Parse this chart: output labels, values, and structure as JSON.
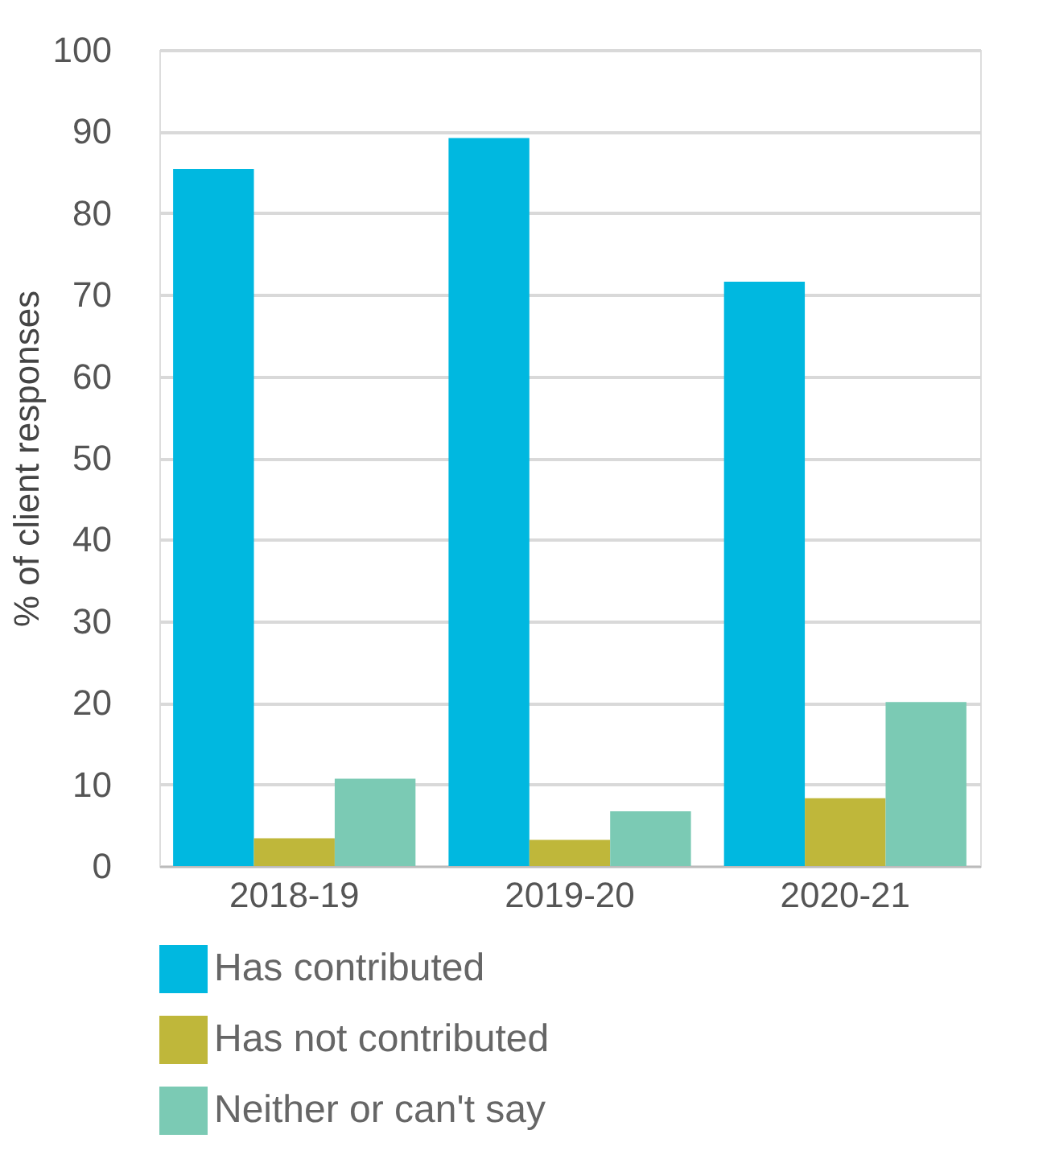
{
  "chart_data": {
    "type": "bar",
    "ylabel": "% of client responses",
    "categories": [
      "2018-19",
      "2019-20",
      "2020-21"
    ],
    "series": [
      {
        "name": "Has contributed",
        "color": "#00b8e0",
        "values": [
          85.4,
          89.2,
          71.6
        ]
      },
      {
        "name": "Has not contributed",
        "color": "#bfb73a",
        "values": [
          3.4,
          3.2,
          8.3
        ]
      },
      {
        "name": "Neither or can't say",
        "color": "#7bcab4",
        "values": [
          10.7,
          6.7,
          20.1
        ]
      }
    ],
    "ylim": [
      0,
      100
    ],
    "yticks": [
      0,
      10,
      20,
      30,
      40,
      50,
      60,
      70,
      80,
      90,
      100
    ],
    "grid": "y",
    "legend": "bottom"
  }
}
